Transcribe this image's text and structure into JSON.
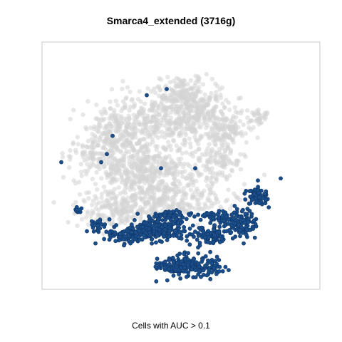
{
  "chart_data": {
    "type": "scatter",
    "title": "Smarca4_extended (3716g)",
    "caption": "Cells with AUC > 0.1",
    "xlabel": "",
    "ylabel": "",
    "grid": false,
    "legend": "none",
    "colors": {
      "background": "#d3d3d3",
      "highlight": "#1b4f8c",
      "highlight_edge": "#0f3566",
      "frame": "#c8c8c8"
    },
    "series": [
      {
        "name": "",
        "role": "background",
        "color": "#d3d3d3",
        "clusters": [
          {
            "cx": 23,
            "cy": 11,
            "rx": 5,
            "ry": 4,
            "n": 140
          },
          {
            "cx": 26,
            "cy": 16,
            "rx": 5,
            "ry": 6,
            "n": 260
          },
          {
            "cx": 18,
            "cy": 18,
            "rx": 8,
            "ry": 6,
            "n": 260
          },
          {
            "cx": 12,
            "cy": 21,
            "rx": 6,
            "ry": 6,
            "n": 220
          },
          {
            "cx": 7,
            "cy": 27,
            "rx": 4,
            "ry": 4,
            "n": 70
          },
          {
            "cx": 20,
            "cy": 30,
            "rx": 9,
            "ry": 6,
            "n": 320
          },
          {
            "cx": 14,
            "cy": 30,
            "rx": 6,
            "ry": 6,
            "n": 180
          },
          {
            "cx": 21,
            "cy": 38,
            "rx": 10,
            "ry": 4,
            "n": 260
          },
          {
            "cx": 11,
            "cy": 40,
            "rx": 6,
            "ry": 4,
            "n": 140
          },
          {
            "cx": 30,
            "cy": 27,
            "rx": 3,
            "ry": 6,
            "n": 110
          },
          {
            "cx": 31,
            "cy": 20,
            "rx": 3,
            "ry": 3,
            "n": 70
          },
          {
            "cx": 36,
            "cy": 17,
            "rx": 3,
            "ry": 2,
            "n": 40
          }
        ]
      },
      {
        "name": "",
        "role": "highlighted",
        "color": "#1b4f8c",
        "clusters": [
          {
            "cx": 24.5,
            "cy": 53.5,
            "rx": 4.5,
            "ry": 2.2,
            "n": 230
          },
          {
            "cx": 19,
            "cy": 44.5,
            "rx": 5,
            "ry": 2.5,
            "n": 220
          },
          {
            "cx": 28,
            "cy": 46,
            "rx": 3,
            "ry": 1.8,
            "n": 90
          },
          {
            "cx": 13.5,
            "cy": 46,
            "rx": 3,
            "ry": 1.5,
            "n": 80
          },
          {
            "cx": 33.5,
            "cy": 43,
            "rx": 2.2,
            "ry": 3,
            "n": 110
          },
          {
            "cx": 36.5,
            "cy": 36.5,
            "rx": 1.8,
            "ry": 2,
            "n": 70
          },
          {
            "cx": 29,
            "cy": 41.5,
            "rx": 2,
            "ry": 1.5,
            "n": 45
          },
          {
            "cx": 21.5,
            "cy": 41,
            "rx": 3,
            "ry": 1,
            "n": 50
          },
          {
            "cx": 8.5,
            "cy": 43.5,
            "rx": 1.5,
            "ry": 1.5,
            "n": 25
          },
          {
            "cx": 5,
            "cy": 40,
            "rx": 1,
            "ry": 1,
            "n": 8
          }
        ],
        "singletons": [
          {
            "x": 2,
            "y": 28
          },
          {
            "x": 10,
            "y": 26
          },
          {
            "x": 9,
            "y": 28
          },
          {
            "x": 11,
            "y": 21.5
          },
          {
            "x": 17,
            "y": 11.5
          },
          {
            "x": 20.5,
            "y": 10
          },
          {
            "x": 19.5,
            "y": 29.5
          },
          {
            "x": 25.5,
            "y": 29.5
          },
          {
            "x": 40.5,
            "y": 32
          },
          {
            "x": 36.5,
            "y": 32.5
          },
          {
            "x": 31,
            "y": 45
          },
          {
            "x": 34,
            "y": 48
          },
          {
            "x": 6.5,
            "y": 45
          },
          {
            "x": 8,
            "y": 48
          },
          {
            "x": 13,
            "y": 48.5
          },
          {
            "x": 26,
            "y": 49
          }
        ]
      }
    ]
  }
}
